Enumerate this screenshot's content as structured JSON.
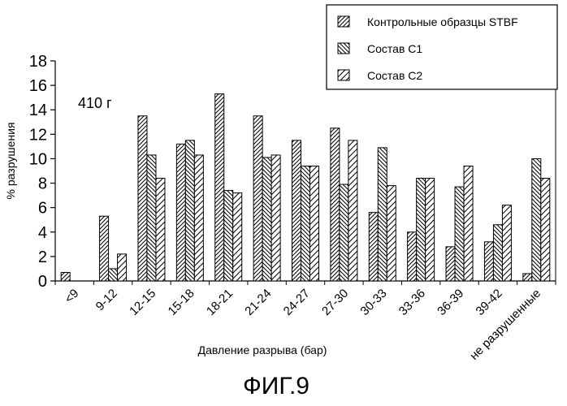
{
  "chart_data": {
    "type": "bar",
    "title": "",
    "xlabel": "Давление разрыва (бар)",
    "ylabel": "% разрушения",
    "ylim": [
      0,
      18
    ],
    "yticks": [
      0,
      2,
      4,
      6,
      8,
      10,
      12,
      14,
      16,
      18
    ],
    "grid": false,
    "legend_position": "top-right",
    "annotation": "410 г",
    "categories": [
      "<9",
      "9-12",
      "12-15",
      "15-18",
      "18-21",
      "21-24",
      "24-27",
      "27-30",
      "30-33",
      "33-36",
      "36-39",
      "39-42",
      "не разрушенные"
    ],
    "series": [
      {
        "name": "Контрольные образцы STBF",
        "values": [
          0.7,
          5.3,
          13.5,
          11.2,
          15.3,
          13.5,
          11.5,
          12.5,
          5.6,
          4.0,
          2.8,
          3.2,
          0.6
        ]
      },
      {
        "name": "Состав C1",
        "values": [
          0,
          1.0,
          10.3,
          11.5,
          7.4,
          10.1,
          9.4,
          7.9,
          10.9,
          8.4,
          7.7,
          4.6,
          10.0
        ]
      },
      {
        "name": "Состав C2",
        "values": [
          0,
          2.2,
          8.4,
          10.3,
          7.2,
          10.3,
          9.4,
          11.5,
          7.8,
          8.4,
          9.4,
          6.2,
          8.4
        ]
      }
    ]
  },
  "caption": "ФИГ.9"
}
